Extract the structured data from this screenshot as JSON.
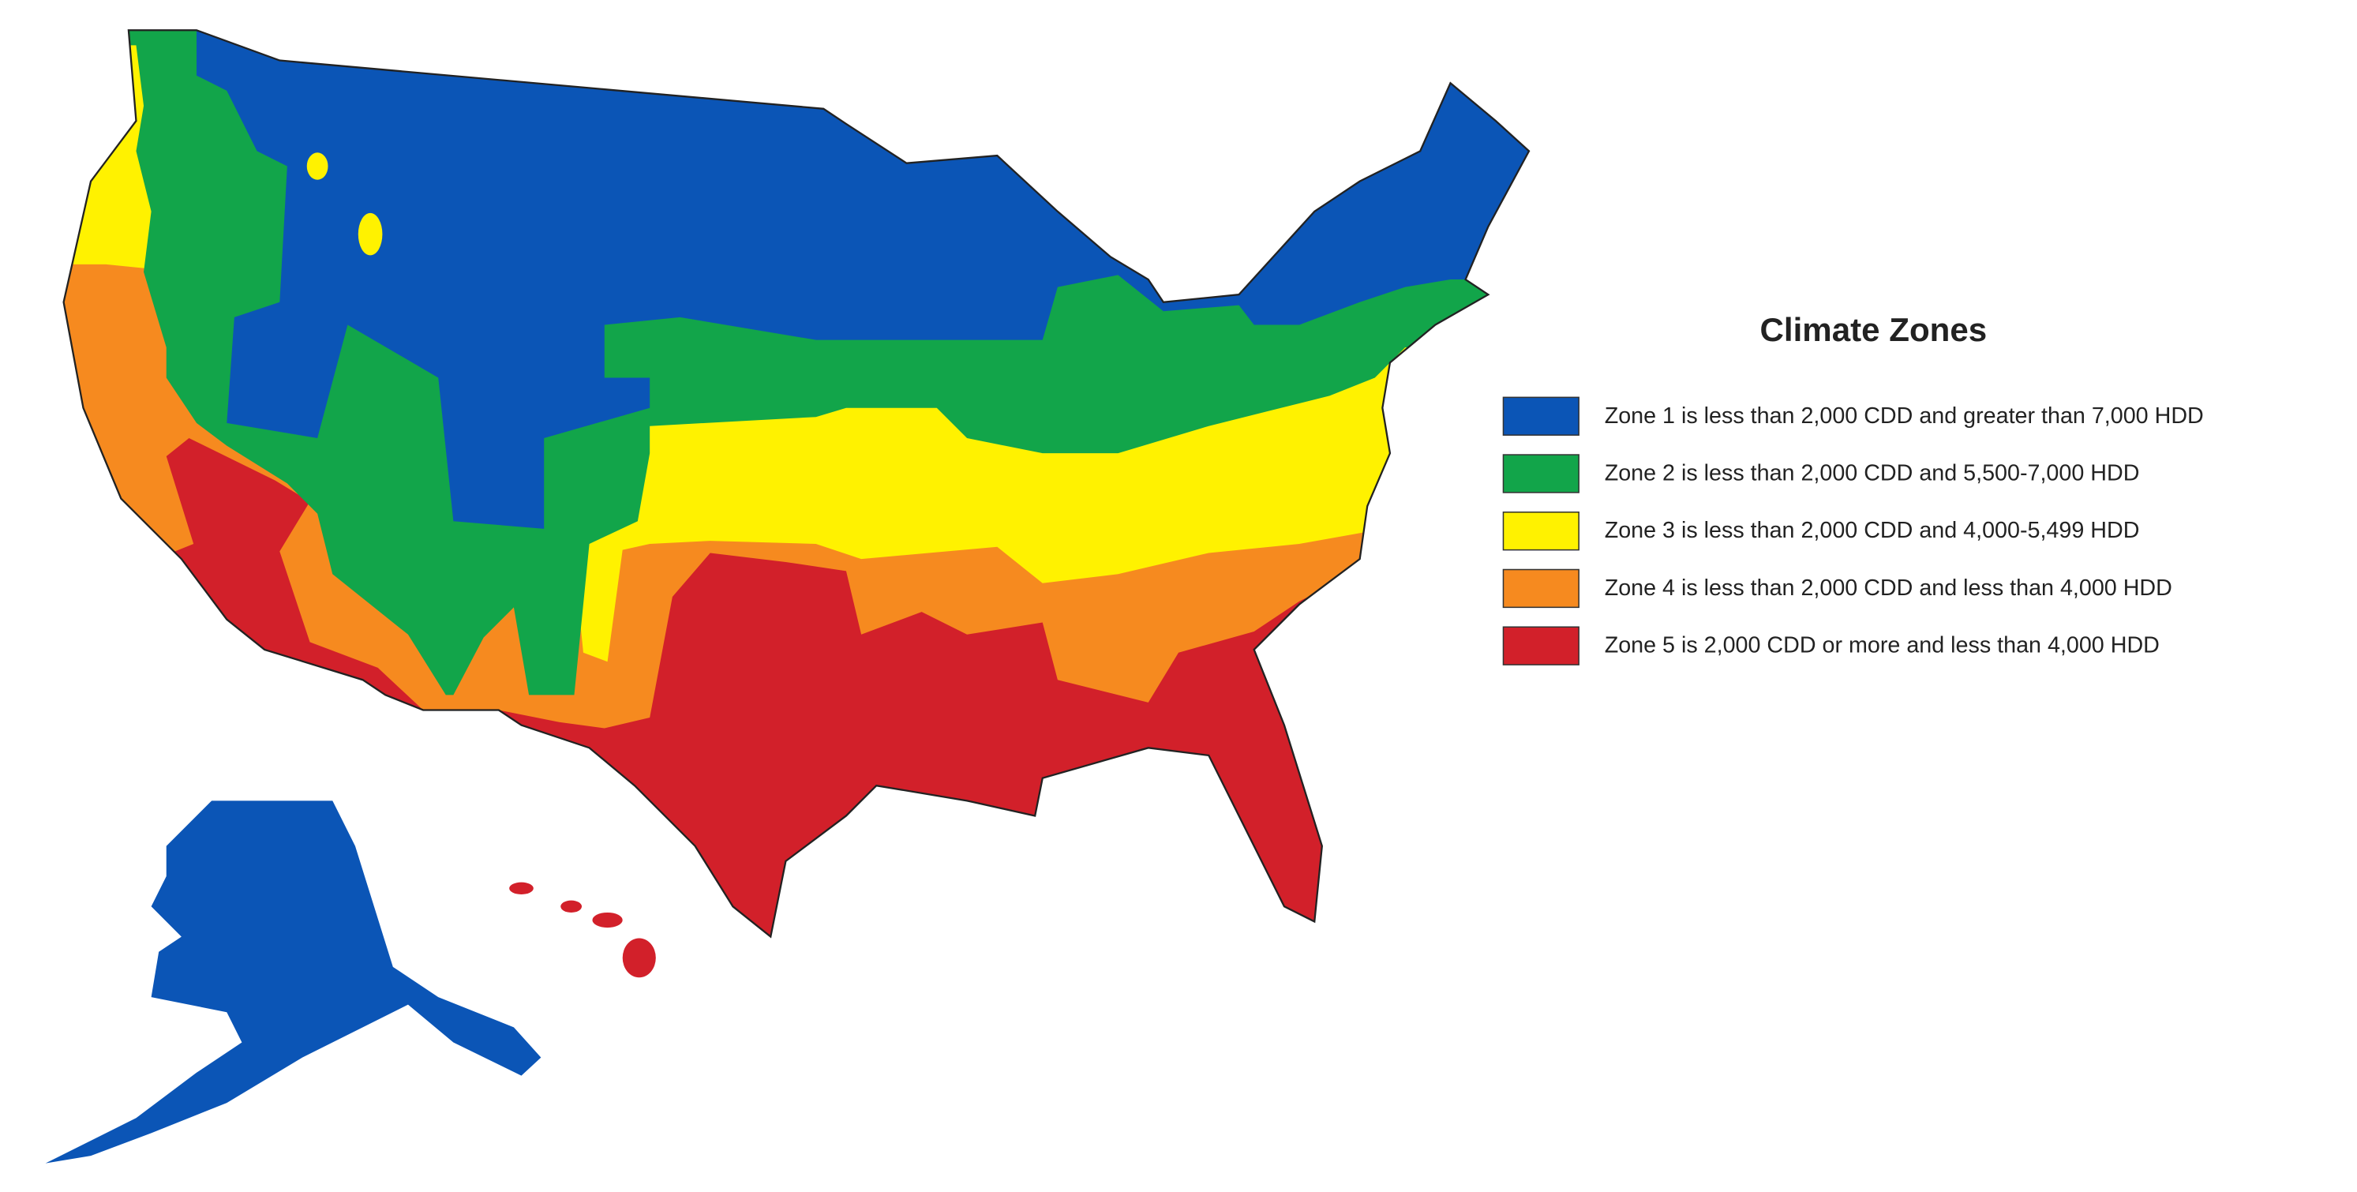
{
  "legend": {
    "title": "Climate Zones",
    "items": [
      {
        "label": "Zone 1 is less than 2,000 CDD and greater than 7,000 HDD",
        "color": "#0b55b6"
      },
      {
        "label": "Zone 2 is less than 2,000 CDD and 5,500-7,000 HDD",
        "color": "#12a54a"
      },
      {
        "label": "Zone 3 is less than 2,000 CDD and 4,000-5,499 HDD",
        "color": "#fff200"
      },
      {
        "label": "Zone 4 is less than 2,000 CDD and less than 4,000 HDD",
        "color": "#f68a1f"
      },
      {
        "label": "Zone 5 is 2,000 CDD or more and less than 4,000 HDD",
        "color": "#d2202a"
      }
    ]
  }
}
